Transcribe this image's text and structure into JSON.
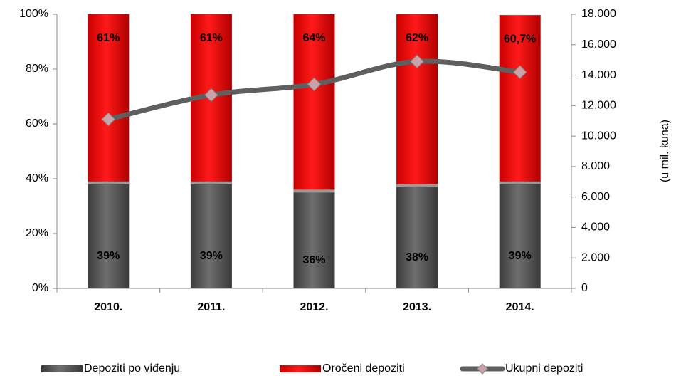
{
  "chart_data": {
    "type": "stacked_bar_line",
    "categories": [
      "2010.",
      "2011.",
      "2012.",
      "2013.",
      "2014."
    ],
    "series": [
      {
        "name": "Depoziti po viđenju",
        "color": "#5a5a5a",
        "values": [
          39,
          39,
          36,
          38,
          39
        ],
        "value_labels": [
          "39%",
          "39%",
          "36%",
          "38%",
          "39%"
        ]
      },
      {
        "name": "Oročeni depoziti",
        "color": "#ff0000",
        "values": [
          61,
          61,
          64,
          62,
          60.7
        ],
        "value_labels": [
          "61%",
          "61%",
          "64%",
          "62%",
          "60,7%"
        ]
      },
      {
        "name": "Ukupni depoziti",
        "color": "#5f5f5f",
        "axis": "y2",
        "type": "line",
        "values": [
          11100,
          12700,
          13400,
          14900,
          14200
        ]
      }
    ],
    "ylim": [
      0,
      100
    ],
    "yticks": [
      {
        "value": 0,
        "label": "0%"
      },
      {
        "value": 20,
        "label": "20%"
      },
      {
        "value": 40,
        "label": "40%"
      },
      {
        "value": 60,
        "label": "60%"
      },
      {
        "value": 80,
        "label": "80%"
      },
      {
        "value": 100,
        "label": "100%"
      }
    ],
    "y2lim": [
      0,
      18000
    ],
    "y2ticks": [
      0,
      {
        "value": 2000,
        "label": "2.000"
      },
      {
        "value": 4000,
        "label": "4.000"
      },
      {
        "value": 6000,
        "label": "6.000"
      },
      {
        "value": 8000,
        "label": "8.000"
      },
      {
        "value": 10000,
        "label": "10.000"
      },
      {
        "value": 12000,
        "label": "12.000"
      },
      {
        "value": 14000,
        "label": "14.000"
      },
      {
        "value": 16000,
        "label": "16.000"
      },
      {
        "value": 18000,
        "label": "18.000"
      }
    ],
    "y2label": "(u mil. kuna)",
    "legend": "bottom"
  }
}
